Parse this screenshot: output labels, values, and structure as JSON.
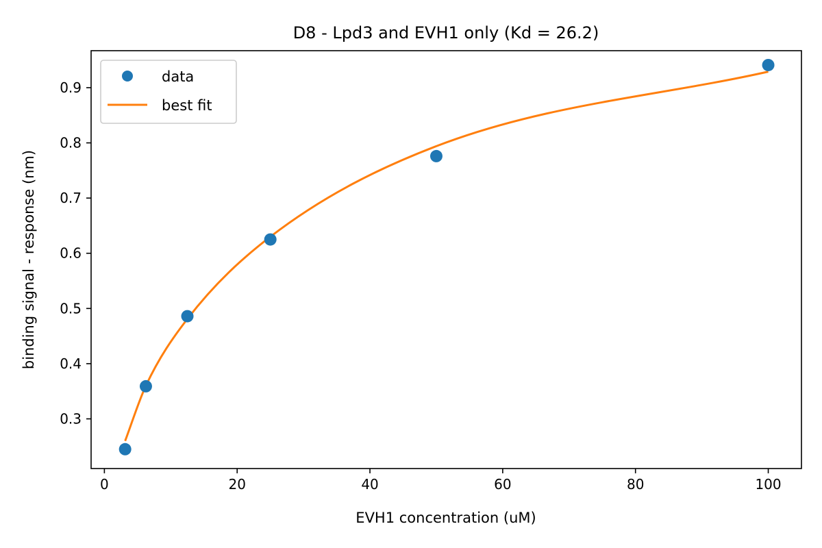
{
  "chart_data": {
    "type": "scatter",
    "title": "D8 - Lpd3 and EVH1 only (Kd = 26.2)",
    "xlabel": "EVH1 concentration (uM)",
    "ylabel": "binding signal - response (nm)",
    "xlim": [
      -2,
      105
    ],
    "ylim": [
      0.21,
      0.967
    ],
    "xticks": [
      0,
      20,
      40,
      60,
      80,
      100
    ],
    "yticks": [
      0.3,
      0.4,
      0.5,
      0.6,
      0.7,
      0.8,
      0.9
    ],
    "xtick_labels": [
      "0",
      "20",
      "40",
      "60",
      "80",
      "100"
    ],
    "ytick_labels": [
      "0.3",
      "0.4",
      "0.5",
      "0.6",
      "0.7",
      "0.8",
      "0.9"
    ],
    "grid": false,
    "legend_position": "top-left",
    "series": [
      {
        "name": "data",
        "kind": "points",
        "color": "#1f77b4",
        "x": [
          3.125,
          6.25,
          12.5,
          25,
          50,
          100
        ],
        "y": [
          0.245,
          0.359,
          0.486,
          0.625,
          0.776,
          0.941
        ]
      },
      {
        "name": "best fit",
        "kind": "curve",
        "color": "#ff7f0e",
        "x": [
          3.125,
          6.25,
          12.5,
          25,
          50,
          100
        ],
        "y": [
          0.26,
          0.36,
          0.481,
          0.63,
          0.794,
          0.929
        ]
      }
    ]
  }
}
